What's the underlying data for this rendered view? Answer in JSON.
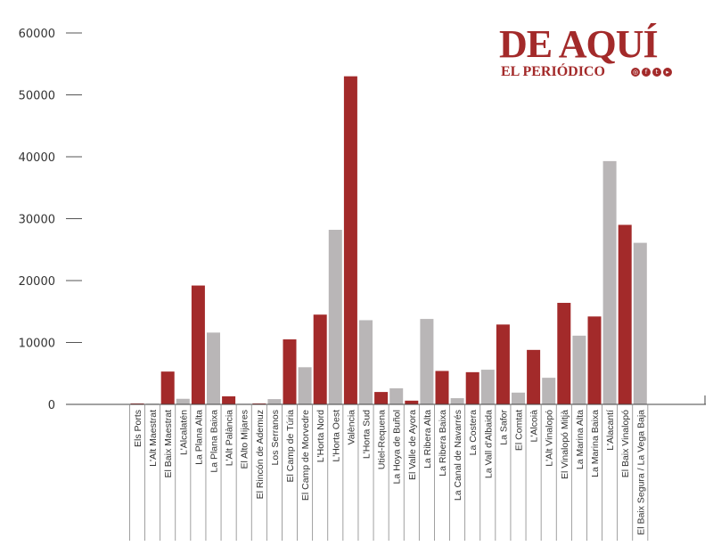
{
  "logo": {
    "title": "DE AQUÍ",
    "subtitle": "EL PERIÓDICO",
    "icons": [
      "instagram-icon",
      "facebook-icon",
      "twitter-icon",
      "youtube-icon"
    ]
  },
  "colors": {
    "dark": "#a32a2a",
    "light": "#b9b6b7"
  },
  "chart_data": {
    "type": "bar",
    "title": "",
    "xlabel": "",
    "ylabel": "",
    "ylim": [
      0,
      60000
    ],
    "yticks": [
      0,
      10000,
      20000,
      30000,
      40000,
      50000,
      60000
    ],
    "grid": false,
    "categories": [
      "Els Ports",
      "L'Alt Maestrat",
      "El Baix Maestrat",
      "L'Alcalatén",
      "La Plana Alta",
      "La Plana Baixa",
      "L'Alt Palància",
      "El Alto Mijares",
      "El Rincón de Ademuz",
      "Los Serranos",
      "El Camp de Túria",
      "El Camp de Morvedre",
      "L'Horta Nord",
      "L'Horta Oest",
      "València",
      "L'Horta Sud",
      "Utiel-Requena",
      "La Hoya de Buñol",
      "El Valle de Ayora",
      "La Ribera Alta",
      "La Ribera Baixa",
      "La Canal de Navarrés",
      "La Costera",
      "La Vall d'Albaida",
      "La Safor",
      "El Comtat",
      "L'Alcoià",
      "L'Alt Vinalopó",
      "El Vinalopó Mitjà",
      "La Marina Alta",
      "La Marina Baixa",
      "L'Alacantí",
      "El Baix Vinalopó",
      "El Baix Segura / La Vega Baja"
    ],
    "values": [
      150,
      120,
      5300,
      900,
      19200,
      11600,
      1300,
      100,
      150,
      850,
      10500,
      6000,
      14500,
      28200,
      53000,
      13600,
      2000,
      2600,
      600,
      13800,
      5400,
      1000,
      5200,
      5600,
      12900,
      1900,
      8800,
      4300,
      16400,
      11100,
      14200,
      39300,
      29000,
      26100
    ],
    "bar_colors": [
      "dark",
      "light",
      "dark",
      "light",
      "dark",
      "light",
      "dark",
      "light",
      "dark",
      "light",
      "dark",
      "light",
      "dark",
      "light",
      "dark",
      "light",
      "dark",
      "light",
      "dark",
      "light",
      "dark",
      "light",
      "dark",
      "light",
      "dark",
      "light",
      "dark",
      "light",
      "dark",
      "light",
      "dark",
      "light",
      "dark",
      "light"
    ]
  }
}
